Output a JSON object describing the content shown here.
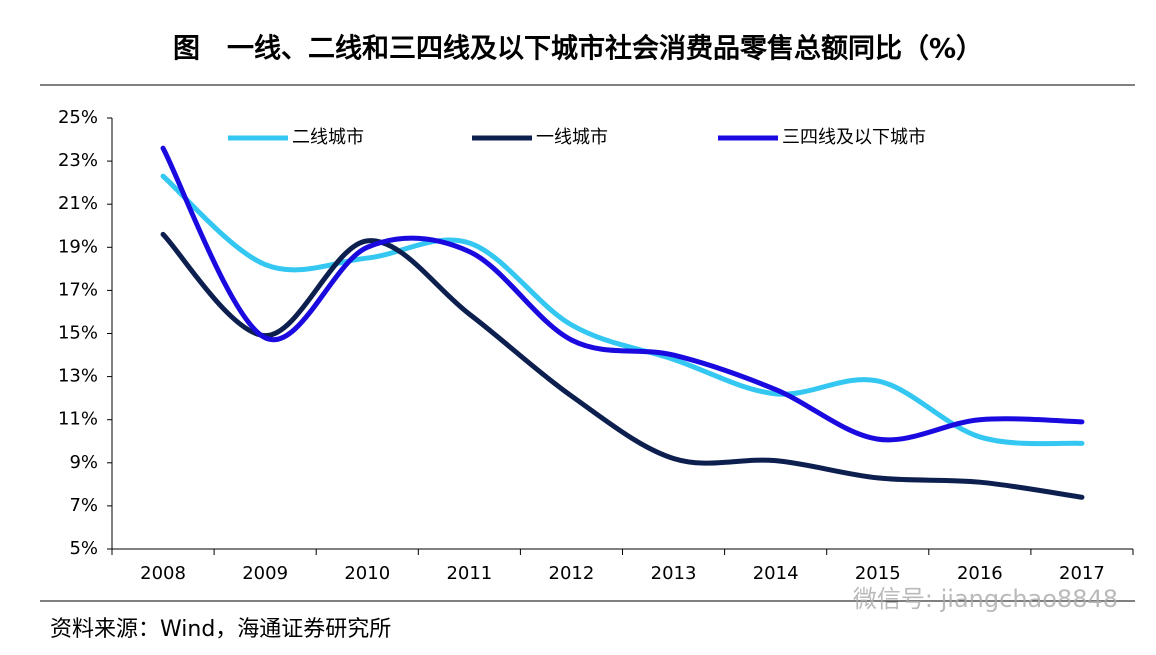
{
  "chart_data": {
    "type": "line",
    "title": "图　一线、二线和三四线及以下城市社会消费品零售总额同比（%）",
    "source": "资料来源：Wind，海通证券研究所",
    "watermark": "微信号: jiangchao8848",
    "categories": [
      "2008",
      "2009",
      "2010",
      "2011",
      "2012",
      "2013",
      "2014",
      "2015",
      "2016",
      "2017"
    ],
    "series": [
      {
        "name": "二线城市",
        "color": "#33c7f2",
        "values": [
          22.3,
          18.2,
          18.5,
          19.2,
          15.4,
          13.8,
          12.2,
          12.8,
          10.2,
          9.9
        ]
      },
      {
        "name": "一线城市",
        "color": "#0d1f4f",
        "values": [
          19.6,
          14.9,
          19.3,
          15.9,
          12.1,
          9.2,
          9.1,
          8.3,
          8.1,
          7.4
        ]
      },
      {
        "name": "三四线及以下城市",
        "color": "#1a0ae0",
        "values": [
          23.6,
          14.8,
          19.0,
          18.8,
          14.7,
          14.0,
          12.4,
          10.1,
          11.0,
          10.9
        ]
      }
    ],
    "ylim": [
      5,
      25
    ],
    "yticks": [
      {
        "value": 5,
        "label": "5%"
      },
      {
        "value": 7,
        "label": "7%"
      },
      {
        "value": 9,
        "label": "9%"
      },
      {
        "value": 11,
        "label": "11%"
      },
      {
        "value": 13,
        "label": "13%"
      },
      {
        "value": 15,
        "label": "15%"
      },
      {
        "value": 17,
        "label": "17%"
      },
      {
        "value": 19,
        "label": "19%"
      },
      {
        "value": 21,
        "label": "21%"
      },
      {
        "value": 23,
        "label": "23%"
      },
      {
        "value": 25,
        "label": "25%"
      }
    ]
  }
}
